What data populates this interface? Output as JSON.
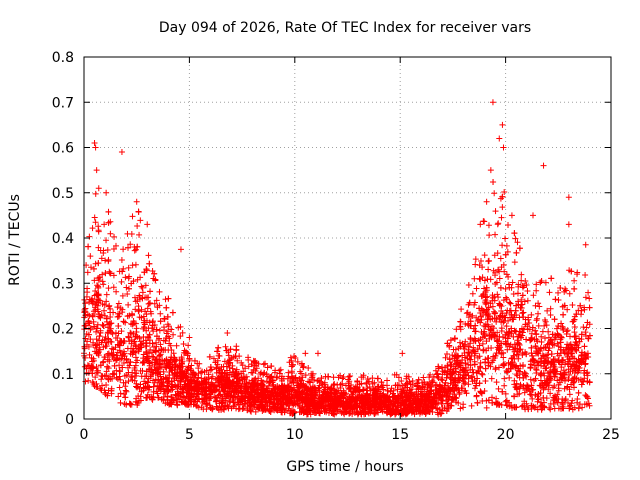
{
  "chart_data": {
    "type": "scatter",
    "title": "Day 094 of 2026, Rate Of TEC Index for receiver vars",
    "xlabel": "GPS time / hours",
    "ylabel": "ROTI / TECUs",
    "xlim": [
      0,
      25
    ],
    "ylim": [
      0,
      0.8
    ],
    "xticks": [
      0,
      5,
      10,
      15,
      20,
      25
    ],
    "yticks": [
      0,
      0.1,
      0.2,
      0.3,
      0.4,
      0.5,
      0.6,
      0.7,
      0.8
    ],
    "xtick_labels": [
      "0",
      "5",
      "10",
      "15",
      "20",
      "25"
    ],
    "ytick_labels": [
      "0",
      "0.1",
      "0.2",
      "0.3",
      "0.4",
      "0.5",
      "0.6",
      "0.7",
      "0.8"
    ],
    "grid": true,
    "marker": "+",
    "color": "#ff0000",
    "series": [
      {
        "name": "ROTI",
        "envelope": {
          "x": [
            0,
            0.5,
            1,
            1.5,
            2,
            2.5,
            3,
            3.5,
            4,
            4.5,
            5,
            5.5,
            6,
            6.5,
            7,
            7.5,
            8,
            9,
            10,
            11,
            12,
            13,
            14,
            15,
            16,
            16.5,
            17,
            17.5,
            18,
            18.5,
            19,
            19.5,
            20,
            20.5,
            21,
            21.5,
            22,
            22.5,
            23,
            23.5,
            24
          ],
          "min": [
            0.08,
            0.07,
            0.05,
            0.04,
            0.03,
            0.03,
            0.04,
            0.04,
            0.03,
            0.03,
            0.03,
            0.02,
            0.02,
            0.02,
            0.02,
            0.02,
            0.015,
            0.015,
            0.01,
            0.01,
            0.01,
            0.01,
            0.01,
            0.01,
            0.01,
            0.01,
            0.01,
            0.02,
            0.02,
            0.03,
            0.02,
            0.03,
            0.03,
            0.02,
            0.02,
            0.02,
            0.02,
            0.02,
            0.02,
            0.02,
            0.02
          ],
          "max": [
            0.35,
            0.5,
            0.48,
            0.42,
            0.4,
            0.48,
            0.38,
            0.3,
            0.28,
            0.22,
            0.16,
            0.12,
            0.14,
            0.17,
            0.18,
            0.15,
            0.13,
            0.12,
            0.14,
            0.1,
            0.1,
            0.1,
            0.1,
            0.1,
            0.09,
            0.1,
            0.14,
            0.2,
            0.26,
            0.36,
            0.45,
            0.55,
            0.5,
            0.4,
            0.36,
            0.3,
            0.33,
            0.3,
            0.33,
            0.35,
            0.3
          ],
          "typical": [
            0.18,
            0.2,
            0.17,
            0.15,
            0.14,
            0.15,
            0.14,
            0.12,
            0.11,
            0.09,
            0.07,
            0.06,
            0.06,
            0.07,
            0.07,
            0.06,
            0.055,
            0.05,
            0.045,
            0.04,
            0.035,
            0.035,
            0.035,
            0.03,
            0.035,
            0.04,
            0.06,
            0.09,
            0.12,
            0.15,
            0.18,
            0.2,
            0.17,
            0.14,
            0.13,
            0.12,
            0.12,
            0.11,
            0.12,
            0.12,
            0.12
          ]
        },
        "outliers": [
          {
            "x": 0.5,
            "y": 0.61
          },
          {
            "x": 0.55,
            "y": 0.6
          },
          {
            "x": 0.6,
            "y": 0.55
          },
          {
            "x": 0.7,
            "y": 0.51
          },
          {
            "x": 1.05,
            "y": 0.5
          },
          {
            "x": 1.8,
            "y": 0.59
          },
          {
            "x": 2.5,
            "y": 0.48
          },
          {
            "x": 3.0,
            "y": 0.43
          },
          {
            "x": 4.6,
            "y": 0.375
          },
          {
            "x": 6.8,
            "y": 0.19
          },
          {
            "x": 10.5,
            "y": 0.145
          },
          {
            "x": 11.1,
            "y": 0.145
          },
          {
            "x": 15.1,
            "y": 0.145
          },
          {
            "x": 18.8,
            "y": 0.43
          },
          {
            "x": 19.1,
            "y": 0.48
          },
          {
            "x": 19.4,
            "y": 0.7
          },
          {
            "x": 19.85,
            "y": 0.65
          },
          {
            "x": 19.7,
            "y": 0.62
          },
          {
            "x": 19.9,
            "y": 0.6
          },
          {
            "x": 19.3,
            "y": 0.55
          },
          {
            "x": 20.3,
            "y": 0.45
          },
          {
            "x": 21.3,
            "y": 0.45
          },
          {
            "x": 21.8,
            "y": 0.56
          },
          {
            "x": 23.0,
            "y": 0.49
          },
          {
            "x": 23.0,
            "y": 0.43
          },
          {
            "x": 23.8,
            "y": 0.385
          },
          {
            "x": 0.1,
            "y": 0.34
          },
          {
            "x": 0.3,
            "y": 0.36
          },
          {
            "x": 5.0,
            "y": 0.18
          }
        ]
      }
    ]
  }
}
